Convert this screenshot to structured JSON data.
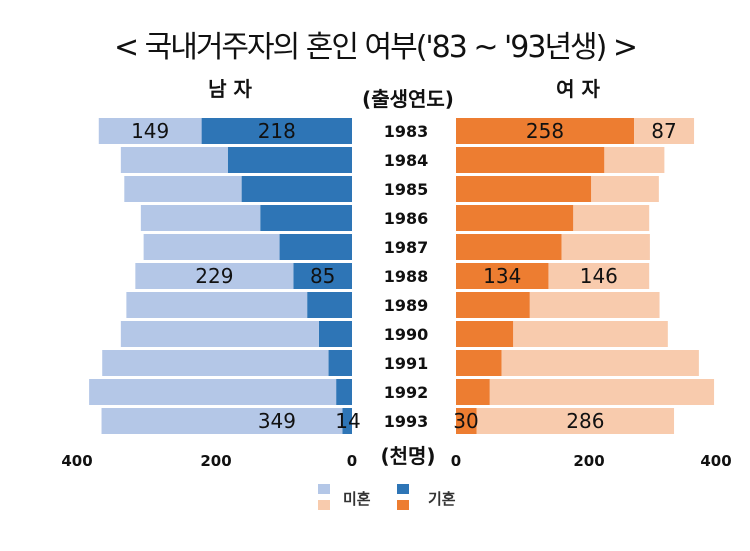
{
  "chart_data": {
    "type": "bar",
    "title": "< 국내거주자의 혼인 여부('83 ~ '93년생) >",
    "left_header": "남 자",
    "right_header": "여 자",
    "category_header": "(출생연도)",
    "unit_label": "(천명)",
    "categories": [
      "1983",
      "1984",
      "1985",
      "1986",
      "1987",
      "1988",
      "1989",
      "1990",
      "1991",
      "1992",
      "1993"
    ],
    "xlim": [
      0,
      400
    ],
    "left_ticks": [
      "400",
      "200",
      "0"
    ],
    "right_ticks": [
      "0",
      "200",
      "400"
    ],
    "legend": {
      "unmarried": "미혼",
      "married": "기혼"
    },
    "colors": {
      "male_unmarried": "#b4c7e7",
      "male_married": "#2e75b6",
      "female_unmarried": "#f8cbad",
      "female_married": "#ed7d31"
    },
    "series": [
      {
        "group": "남 자",
        "name": "기혼",
        "values": [
          218,
          180,
          160,
          133,
          105,
          85,
          65,
          48,
          34,
          23,
          14
        ]
      },
      {
        "group": "남 자",
        "name": "미혼",
        "values": [
          149,
          155,
          170,
          173,
          197,
          229,
          262,
          287,
          328,
          358,
          349
        ]
      },
      {
        "group": "여 자",
        "name": "기혼",
        "values": [
          258,
          215,
          196,
          170,
          153,
          134,
          107,
          83,
          66,
          49,
          30
        ]
      },
      {
        "group": "여 자",
        "name": "미혼",
        "values": [
          87,
          87,
          98,
          110,
          128,
          146,
          188,
          224,
          286,
          325,
          286
        ]
      }
    ],
    "data_labels": {
      "1983": {
        "male_unmarried": "149",
        "male_married": "218",
        "female_married": "258",
        "female_unmarried": "87"
      },
      "1988": {
        "male_unmarried": "229",
        "male_married": "85",
        "female_married": "134",
        "female_unmarried": "146"
      },
      "1993": {
        "male_unmarried": "349",
        "male_married": "14",
        "female_married": "30",
        "female_unmarried": "286"
      }
    }
  }
}
